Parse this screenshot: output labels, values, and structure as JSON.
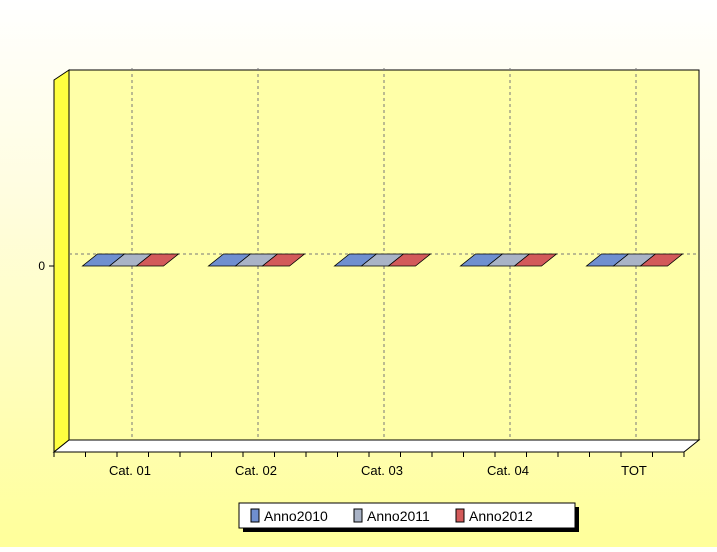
{
  "chart_data": {
    "type": "bar",
    "style": "3d",
    "categories": [
      "Cat. 01",
      "Cat. 02",
      "Cat. 03",
      "Cat. 04",
      "TOT"
    ],
    "series": [
      {
        "name": "Anno2010",
        "values": [
          0,
          0,
          0,
          0,
          0
        ],
        "color": "#6f8fd0"
      },
      {
        "name": "Anno2011",
        "values": [
          0,
          0,
          0,
          0,
          0
        ],
        "color": "#a9b3c6"
      },
      {
        "name": "Anno2012",
        "values": [
          0,
          0,
          0,
          0,
          0
        ],
        "color": "#d35a5a"
      }
    ],
    "y_ticks": [
      "0"
    ],
    "ylim": [
      -1,
      1
    ],
    "grid": true,
    "legend": "bottom-center"
  }
}
